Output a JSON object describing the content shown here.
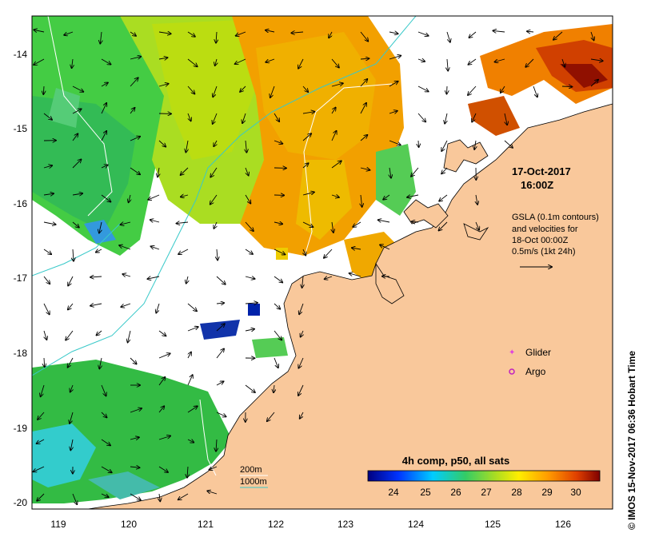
{
  "map": {
    "x_ticks": [
      "119",
      "120",
      "121",
      "122",
      "123",
      "124",
      "125",
      "126"
    ],
    "y_ticks": [
      "-14",
      "-15",
      "-16",
      "-17",
      "-18",
      "-19",
      "-20"
    ],
    "date_line1": "17-Oct-2017",
    "date_line2": "16:00Z",
    "gsla_line1": "GSLA (0.1m contours)",
    "gsla_line2": "and velocities for",
    "gsla_line3": "18-Oct 00:00Z",
    "gsla_line4": "0.5m/s (1kt 24h)",
    "legend_glider": "Glider",
    "legend_argo": "Argo",
    "depth_200": "200m",
    "depth_1000": "1000m",
    "colorbar_title": "4h comp, p50, all sats",
    "colorbar_ticks": [
      "24",
      "25",
      "26",
      "27",
      "28",
      "29",
      "30"
    ],
    "credit": "© IMOS 15-Nov-2017 06:36 Hobart Time"
  },
  "colors": {
    "land": "#f9c89b",
    "ocean_nodata": "#ffffff",
    "glider": "#e040e0",
    "argo": "#c020c0",
    "contour_1000": "#39c9c9"
  }
}
